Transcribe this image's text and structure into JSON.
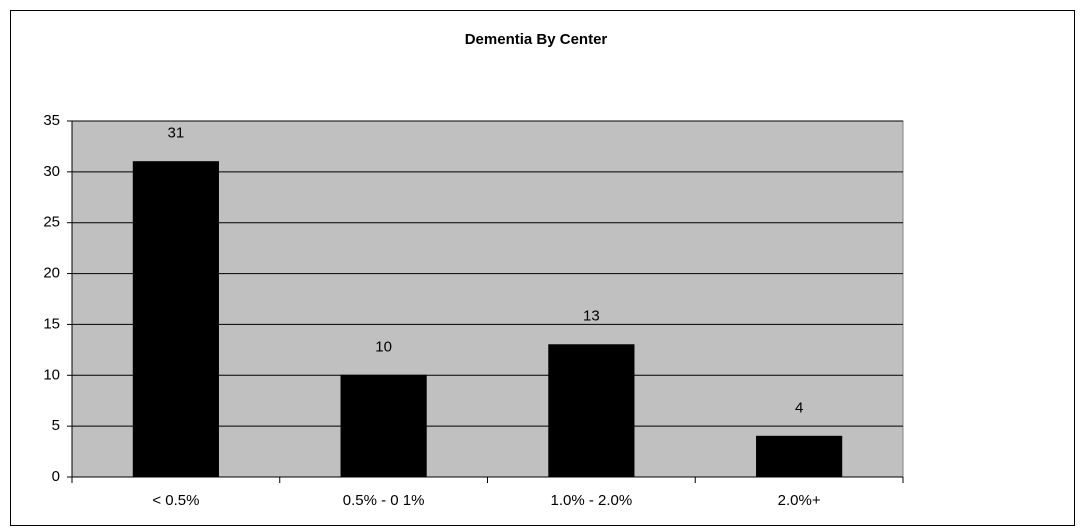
{
  "chart_data": {
    "type": "bar",
    "title": "Dementia By Center",
    "categories": [
      "< 0.5%",
      "0.5% - 0 1%",
      "1.0% - 2.0%",
      "2.0%+"
    ],
    "values": [
      31,
      10,
      13,
      4
    ],
    "color": "#000000",
    "ylim": [
      0,
      35
    ],
    "yticks": [
      0,
      5,
      10,
      15,
      20,
      25,
      30,
      35
    ],
    "grid": true
  }
}
